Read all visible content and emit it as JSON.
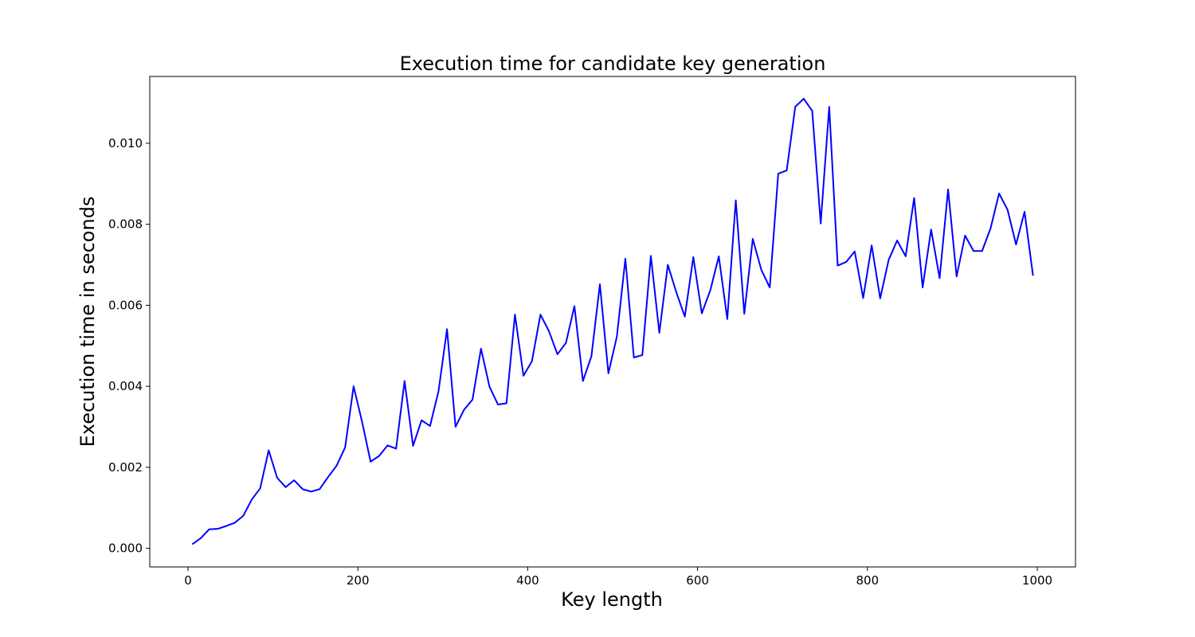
{
  "chart_data": {
    "type": "line",
    "title": "Execution time for candidate key generation",
    "xlabel": "Key length",
    "ylabel": "Execution time in seconds",
    "xlim": [
      -45,
      1045
    ],
    "ylim": [
      -0.00046,
      0.01165
    ],
    "xticks": [
      0,
      200,
      400,
      600,
      800,
      1000
    ],
    "xtick_labels": [
      "0",
      "200",
      "400",
      "600",
      "800",
      "1000"
    ],
    "yticks": [
      0,
      0.002,
      0.004,
      0.006,
      0.008,
      0.01
    ],
    "ytick_labels": [
      "0.000",
      "0.002",
      "0.004",
      "0.006",
      "0.008",
      "0.010"
    ],
    "grid": false,
    "series": [
      {
        "color": "#0000ff",
        "x": [
          5,
          15,
          25,
          35,
          45,
          55,
          65,
          75,
          85,
          95,
          105,
          115,
          125,
          135,
          145,
          155,
          165,
          175,
          185,
          195,
          205,
          215,
          225,
          235,
          245,
          255,
          265,
          275,
          285,
          295,
          305,
          315,
          325,
          335,
          345,
          355,
          365,
          375,
          385,
          395,
          405,
          415,
          425,
          435,
          445,
          455,
          465,
          475,
          485,
          495,
          505,
          515,
          525,
          535,
          545,
          555,
          565,
          575,
          585,
          595,
          605,
          615,
          625,
          635,
          645,
          655,
          665,
          675,
          685,
          695,
          705,
          715,
          725,
          735,
          745,
          755,
          765,
          775,
          785,
          795,
          805,
          815,
          825,
          835,
          845,
          855,
          865,
          875,
          885,
          895,
          905,
          915,
          925,
          935,
          945,
          955,
          965,
          975,
          985,
          995
        ],
        "y": [
          0.0001,
          0.00025,
          0.00047,
          0.00048,
          0.00055,
          0.00063,
          0.0008,
          0.0012,
          0.00148,
          0.00242,
          0.00174,
          0.00151,
          0.00168,
          0.00146,
          0.0014,
          0.00146,
          0.00176,
          0.00204,
          0.00249,
          0.004,
          0.00312,
          0.00214,
          0.00228,
          0.00254,
          0.00246,
          0.00413,
          0.00253,
          0.00316,
          0.00302,
          0.00388,
          0.00541,
          0.003,
          0.00342,
          0.00367,
          0.00493,
          0.00399,
          0.00355,
          0.00358,
          0.00577,
          0.00426,
          0.00462,
          0.00577,
          0.00536,
          0.00479,
          0.00507,
          0.00598,
          0.00413,
          0.00474,
          0.00652,
          0.00432,
          0.00523,
          0.00715,
          0.00471,
          0.00477,
          0.00722,
          0.00532,
          0.007,
          0.00632,
          0.00572,
          0.00719,
          0.0058,
          0.00637,
          0.00721,
          0.00566,
          0.00859,
          0.00579,
          0.00764,
          0.00688,
          0.00644,
          0.00925,
          0.00933,
          0.0109,
          0.0111,
          0.0108,
          0.00802,
          0.0109,
          0.00698,
          0.00707,
          0.00733,
          0.00618,
          0.00748,
          0.00617,
          0.00712,
          0.0076,
          0.00721,
          0.00865,
          0.00644,
          0.00787,
          0.00667,
          0.00886,
          0.00671,
          0.00772,
          0.00734,
          0.00734,
          0.0079,
          0.00876,
          0.00836,
          0.0075,
          0.00831,
          0.00673
        ]
      }
    ]
  }
}
